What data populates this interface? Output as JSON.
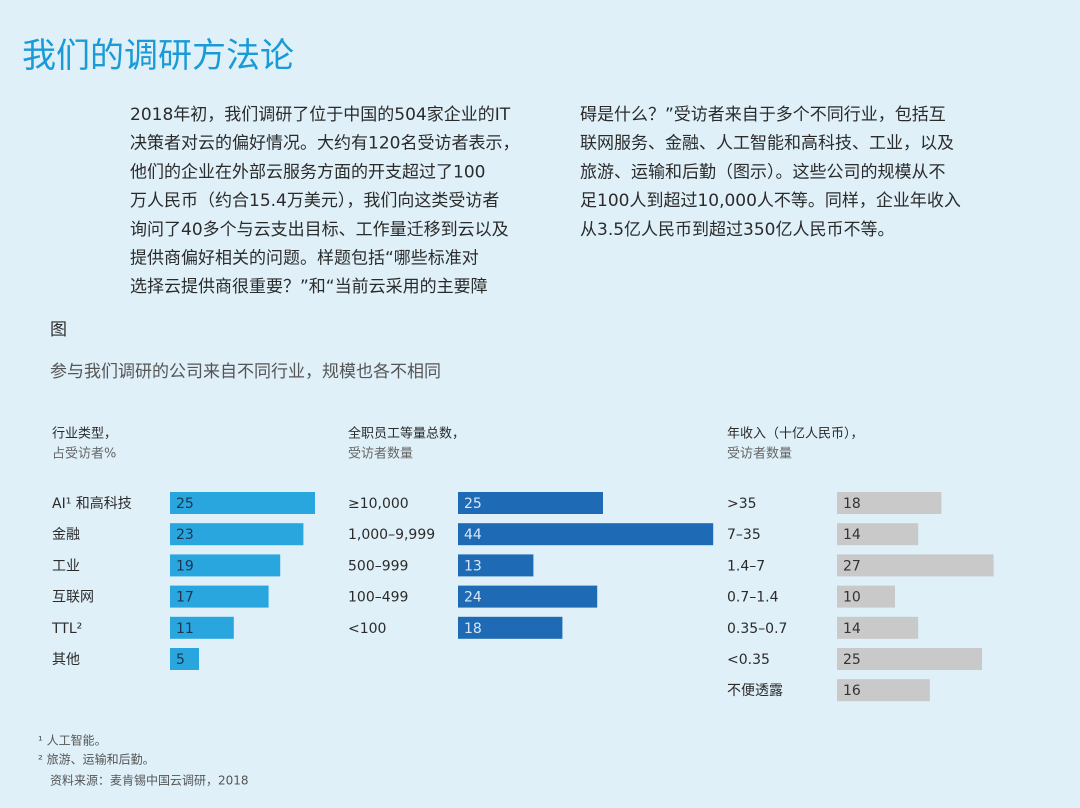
{
  "title": "我们的调研方法论",
  "intro_left": [
    "2018年初，我们调研了位于中国的504家企业的IT",
    "决策者对云的偏好情况。大约有120名受访者表示，",
    "他们的企业在外部云服务方面的开支超过了100",
    "万人民币（约合15.4万美元），我们向这类受访者",
    "询问了40多个与云支出目标、工作量迁移到云以及",
    "提供商偏好相关的问题。样题包括“哪些标准对",
    "选择云提供商很重要？”和“当前云采用的主要障"
  ],
  "intro_right": [
    "碍是什么？”受访者来自于多个不同行业，包括互",
    "联网服务、金融、人工智能和高科技、工业，以及",
    "旅游、运输和后勤（图示）。这些公司的规模从不",
    "足100人到超过10,000人不等。同样，企业年收入",
    "从3.5亿人民币到超过350亿人民币不等。"
  ],
  "figure_label": "图",
  "figure_title": "参与我们调研的公司来自不同行业，规模也各不相同",
  "chart_data": [
    {
      "type": "bar",
      "title": "行业类型，",
      "subtitle": "占受访者%",
      "color": "#2aa6df",
      "categories": [
        "AI¹ 和高科技",
        "金融",
        "工业",
        "互联网",
        "TTL²",
        "其他"
      ],
      "values": [
        25,
        23,
        19,
        17,
        11,
        5
      ]
    },
    {
      "type": "bar",
      "title": "全职员工等量总数，",
      "subtitle": "受访者数量",
      "color": "#1f6ab4",
      "categories": [
        "≥10,000",
        "1,000–9,999",
        "500–999",
        "100–499",
        "<100"
      ],
      "values": [
        25,
        44,
        13,
        24,
        18
      ]
    },
    {
      "type": "bar",
      "title": "年收入（十亿人民币），",
      "subtitle": "受访者数量",
      "color": "#c9c9ca",
      "categories": [
        ">35",
        "7–35",
        "1.4–7",
        "0.7–1.4",
        "0.35–0.7",
        "<0.35",
        "不便透露"
      ],
      "values": [
        18,
        14,
        27,
        10,
        14,
        25,
        16
      ]
    }
  ],
  "footnotes": [
    "¹ 人工智能。",
    "² 旅游、运输和后勤。"
  ],
  "source": "资料来源：麦肯锡中国云调研，2018"
}
